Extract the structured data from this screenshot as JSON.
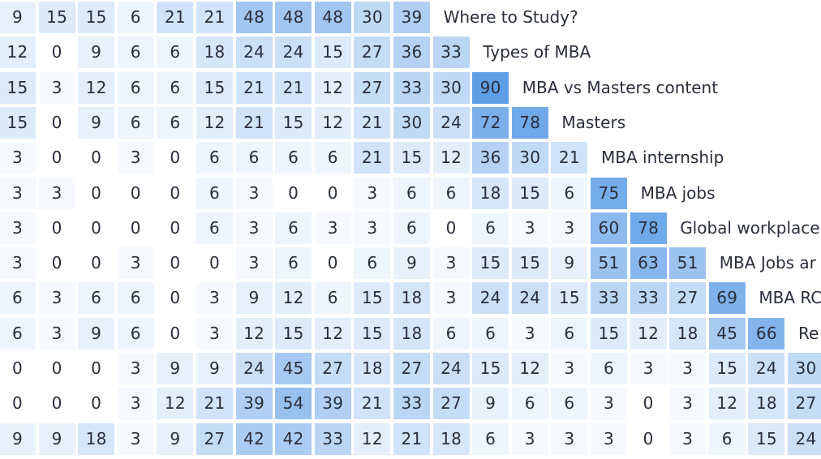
{
  "chart_data": {
    "type": "heatmap",
    "color_scale": {
      "low": "#ffffff",
      "high": "#5e9ee6"
    },
    "rows": [
      {
        "label": "Where to Study?",
        "values": [
          9,
          15,
          15,
          6,
          21,
          21,
          48,
          48,
          48,
          30,
          39
        ]
      },
      {
        "label": "Types of MBA",
        "values": [
          12,
          0,
          9,
          6,
          6,
          18,
          24,
          24,
          15,
          27,
          36,
          33
        ]
      },
      {
        "label": "MBA vs Masters content",
        "values": [
          15,
          3,
          12,
          6,
          6,
          15,
          21,
          21,
          12,
          27,
          33,
          30,
          90
        ]
      },
      {
        "label": "Masters",
        "values": [
          15,
          0,
          9,
          6,
          6,
          12,
          21,
          15,
          12,
          21,
          30,
          24,
          72,
          78
        ]
      },
      {
        "label": "MBA internship",
        "values": [
          3,
          0,
          0,
          3,
          0,
          6,
          6,
          6,
          6,
          21,
          15,
          12,
          36,
          30,
          21
        ]
      },
      {
        "label": "MBA jobs",
        "values": [
          3,
          3,
          0,
          0,
          0,
          6,
          3,
          0,
          0,
          3,
          6,
          6,
          18,
          15,
          6,
          75
        ]
      },
      {
        "label": "Global workplace",
        "values": [
          3,
          0,
          0,
          0,
          0,
          6,
          3,
          6,
          3,
          3,
          6,
          0,
          6,
          3,
          3,
          60,
          78
        ]
      },
      {
        "label": "MBA Jobs ar",
        "values": [
          3,
          0,
          0,
          3,
          0,
          0,
          3,
          6,
          0,
          6,
          9,
          3,
          15,
          15,
          9,
          51,
          63,
          51
        ]
      },
      {
        "label": "MBA RC",
        "values": [
          6,
          3,
          6,
          6,
          0,
          3,
          9,
          12,
          6,
          15,
          18,
          3,
          24,
          24,
          15,
          33,
          33,
          27,
          69
        ]
      },
      {
        "label": "Re",
        "values": [
          6,
          3,
          9,
          6,
          0,
          3,
          12,
          15,
          12,
          15,
          18,
          6,
          6,
          3,
          6,
          15,
          12,
          18,
          45,
          66
        ]
      },
      {
        "label": "",
        "values": [
          0,
          0,
          0,
          3,
          9,
          9,
          24,
          45,
          27,
          18,
          27,
          24,
          15,
          12,
          3,
          6,
          3,
          3,
          15,
          24,
          30
        ]
      },
      {
        "label": "",
        "values": [
          0,
          0,
          0,
          3,
          12,
          21,
          39,
          54,
          39,
          21,
          33,
          27,
          9,
          6,
          6,
          3,
          0,
          3,
          12,
          18,
          27
        ]
      },
      {
        "label": "",
        "values": [
          9,
          9,
          18,
          3,
          9,
          27,
          42,
          42,
          33,
          12,
          21,
          18,
          6,
          3,
          3,
          3,
          0,
          3,
          6,
          15,
          24
        ]
      }
    ]
  }
}
